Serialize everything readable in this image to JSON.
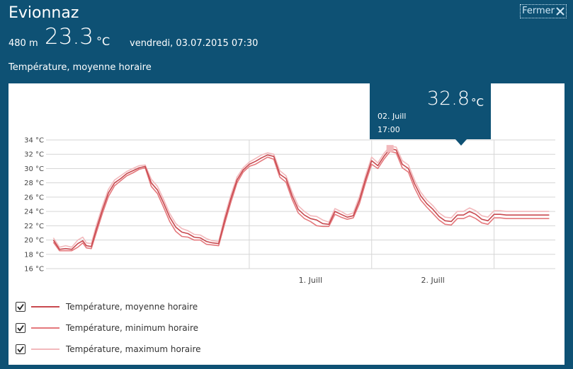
{
  "header": {
    "station": "Evionnaz",
    "close_label": "Fermer",
    "elevation": "480 m",
    "current_temp": "23.3",
    "temp_unit": "°C",
    "datetime": "vendredi, 03.07.2015 07:30",
    "subtitle": "Température, moyenne horaire"
  },
  "tooltip": {
    "value": "32.8",
    "unit": "°C",
    "date": "02. Juill",
    "time": "17:00"
  },
  "legend": [
    {
      "label": "Température, moyenne horaire",
      "color": "#c8494f",
      "checked": true
    },
    {
      "label": "Température, minimum horaire",
      "color": "#e4787c",
      "checked": true
    },
    {
      "label": "Température, maximum horaire",
      "color": "#f2b9bc",
      "checked": true
    }
  ],
  "colors": {
    "header_bg": "#0e5174",
    "mean": "#c8494f",
    "min": "#e4787c",
    "max": "#f2b9bc",
    "grid": "#d6d6d6"
  },
  "chart_data": {
    "type": "line",
    "ylim": [
      16,
      34
    ],
    "yticks": [
      "16 °C",
      "18 °C",
      "20 °C",
      "22 °C",
      "24 °C",
      "26 °C",
      "28 °C",
      "30 °C",
      "32 °C",
      "34 °C"
    ],
    "ytick_values": [
      16,
      18,
      20,
      22,
      24,
      26,
      28,
      30,
      32,
      34
    ],
    "xlim": [
      -1.66,
      2.5
    ],
    "xticks": [
      "1. Juill",
      "2. Juill"
    ],
    "xtick_values": [
      0.5,
      1.5
    ],
    "grid": true,
    "series": [
      {
        "name": "Température, moyenne horaire",
        "x": [
          -1.6,
          -1.55,
          -1.5,
          -1.45,
          -1.4,
          -1.36,
          -1.33,
          -1.29,
          -1.25,
          -1.2,
          -1.15,
          -1.1,
          -1.05,
          -1.0,
          -0.95,
          -0.9,
          -0.85,
          -0.8,
          -0.75,
          -0.7,
          -0.65,
          -0.6,
          -0.55,
          -0.5,
          -0.45,
          -0.4,
          -0.35,
          -0.3,
          -0.25,
          -0.2,
          -0.15,
          -0.1,
          -0.05,
          0.0,
          0.05,
          0.1,
          0.15,
          0.2,
          0.25,
          0.3,
          0.35,
          0.4,
          0.45,
          0.5,
          0.55,
          0.6,
          0.65,
          0.7,
          0.75,
          0.8,
          0.85,
          0.9,
          0.95,
          1.0,
          1.05,
          1.1,
          1.15,
          1.2,
          1.25,
          1.3,
          1.35,
          1.4,
          1.45,
          1.5,
          1.55,
          1.6,
          1.65,
          1.7,
          1.75,
          1.8,
          1.85,
          1.9,
          1.95,
          2.0,
          2.05,
          2.1,
          2.15,
          2.2,
          2.25,
          2.3,
          2.35,
          2.4,
          2.45
        ],
        "values": [
          20.0,
          18.7,
          18.8,
          18.7,
          19.5,
          19.9,
          19.2,
          19.1,
          21.5,
          24.2,
          26.6,
          28.0,
          28.6,
          29.3,
          29.7,
          30.1,
          30.3,
          28.0,
          27.0,
          25.2,
          23.2,
          21.8,
          21.1,
          20.9,
          20.4,
          20.3,
          19.8,
          19.6,
          19.5,
          22.8,
          25.8,
          28.4,
          29.8,
          30.6,
          31.0,
          31.5,
          31.9,
          31.7,
          29.2,
          28.6,
          26.2,
          24.3,
          23.5,
          23.0,
          22.8,
          22.3,
          22.2,
          24.0,
          23.6,
          23.2,
          23.4,
          25.6,
          28.5,
          31.1,
          30.4,
          31.7,
          32.8,
          32.6,
          30.6,
          30.0,
          27.9,
          26.2,
          25.1,
          24.3,
          23.3,
          22.7,
          22.6,
          23.5,
          23.5,
          24.0,
          23.6,
          22.9,
          22.7,
          23.6,
          23.6,
          23.5,
          23.5,
          23.5,
          23.5,
          23.5,
          23.5,
          23.5,
          23.5
        ]
      },
      {
        "name": "Température, minimum horaire",
        "x": [
          -1.6,
          -1.55,
          -1.5,
          -1.45,
          -1.4,
          -1.36,
          -1.33,
          -1.29,
          -1.25,
          -1.2,
          -1.15,
          -1.1,
          -1.05,
          -1.0,
          -0.95,
          -0.9,
          -0.85,
          -0.8,
          -0.75,
          -0.7,
          -0.65,
          -0.6,
          -0.55,
          -0.5,
          -0.45,
          -0.4,
          -0.35,
          -0.3,
          -0.25,
          -0.2,
          -0.15,
          -0.1,
          -0.05,
          0.0,
          0.05,
          0.1,
          0.15,
          0.2,
          0.25,
          0.3,
          0.35,
          0.4,
          0.45,
          0.5,
          0.55,
          0.6,
          0.65,
          0.7,
          0.75,
          0.8,
          0.85,
          0.9,
          0.95,
          1.0,
          1.05,
          1.1,
          1.15,
          1.2,
          1.25,
          1.3,
          1.35,
          1.4,
          1.45,
          1.5,
          1.55,
          1.6,
          1.65,
          1.7,
          1.75,
          1.8,
          1.85,
          1.9,
          1.95,
          2.0,
          2.05,
          2.1,
          2.15,
          2.2,
          2.25,
          2.3,
          2.35,
          2.4,
          2.45
        ],
        "values": [
          19.7,
          18.5,
          18.5,
          18.5,
          19.0,
          19.6,
          18.9,
          18.8,
          21.0,
          23.7,
          26.1,
          27.6,
          28.3,
          29.0,
          29.4,
          29.9,
          30.1,
          27.5,
          26.5,
          24.6,
          22.6,
          21.2,
          20.5,
          20.4,
          20.0,
          20.0,
          19.4,
          19.3,
          19.2,
          22.3,
          25.3,
          28.0,
          29.5,
          30.3,
          30.6,
          31.1,
          31.6,
          31.3,
          28.8,
          28.1,
          25.7,
          23.8,
          23.0,
          22.6,
          22.0,
          21.9,
          21.9,
          23.6,
          23.2,
          22.9,
          23.1,
          25.1,
          28.0,
          30.6,
          30.0,
          31.3,
          32.4,
          32.2,
          30.1,
          29.5,
          27.3,
          25.6,
          24.6,
          23.7,
          22.8,
          22.2,
          22.1,
          23.0,
          23.0,
          23.4,
          23.0,
          22.4,
          22.2,
          23.1,
          23.1,
          23.0,
          23.0,
          23.0,
          23.0,
          23.0,
          23.0,
          23.0,
          23.0
        ]
      },
      {
        "name": "Température, maximum horaire",
        "x": [
          -1.6,
          -1.55,
          -1.5,
          -1.45,
          -1.4,
          -1.36,
          -1.33,
          -1.29,
          -1.25,
          -1.2,
          -1.15,
          -1.1,
          -1.05,
          -1.0,
          -0.95,
          -0.9,
          -0.85,
          -0.8,
          -0.75,
          -0.7,
          -0.65,
          -0.6,
          -0.55,
          -0.5,
          -0.45,
          -0.4,
          -0.35,
          -0.3,
          -0.25,
          -0.2,
          -0.15,
          -0.1,
          -0.05,
          0.0,
          0.05,
          0.1,
          0.15,
          0.2,
          0.25,
          0.3,
          0.35,
          0.4,
          0.45,
          0.5,
          0.55,
          0.6,
          0.65,
          0.7,
          0.75,
          0.8,
          0.85,
          0.9,
          0.95,
          1.0,
          1.05,
          1.1,
          1.15,
          1.2,
          1.25,
          1.3,
          1.35,
          1.4,
          1.45,
          1.5,
          1.55,
          1.6,
          1.65,
          1.7,
          1.75,
          1.8,
          1.85,
          1.9,
          1.95,
          2.0,
          2.05,
          2.1,
          2.15,
          2.2,
          2.25,
          2.3,
          2.35,
          2.4,
          2.45
        ],
        "values": [
          20.3,
          19.0,
          19.2,
          19.0,
          20.0,
          20.4,
          19.6,
          19.5,
          22.0,
          24.7,
          27.1,
          28.4,
          29.0,
          29.6,
          30.0,
          30.4,
          30.5,
          28.5,
          27.5,
          25.7,
          23.7,
          22.3,
          21.6,
          21.3,
          20.8,
          20.7,
          20.2,
          19.9,
          19.8,
          23.3,
          26.3,
          28.8,
          30.1,
          30.9,
          31.4,
          31.9,
          32.2,
          32.0,
          29.7,
          29.0,
          26.7,
          24.8,
          24.0,
          23.4,
          23.3,
          22.8,
          22.5,
          24.4,
          24.0,
          23.5,
          23.8,
          26.1,
          29.0,
          31.6,
          30.8,
          32.1,
          33.1,
          33.0,
          31.1,
          30.5,
          28.4,
          26.7,
          25.6,
          24.8,
          23.8,
          23.2,
          23.1,
          24.0,
          24.0,
          24.5,
          24.1,
          23.4,
          23.2,
          24.1,
          24.1,
          24.0,
          24.0,
          24.0,
          24.0,
          24.0,
          24.0,
          24.0,
          24.0
        ]
      }
    ],
    "highlight": {
      "x": 1.15,
      "y": 32.8
    }
  }
}
